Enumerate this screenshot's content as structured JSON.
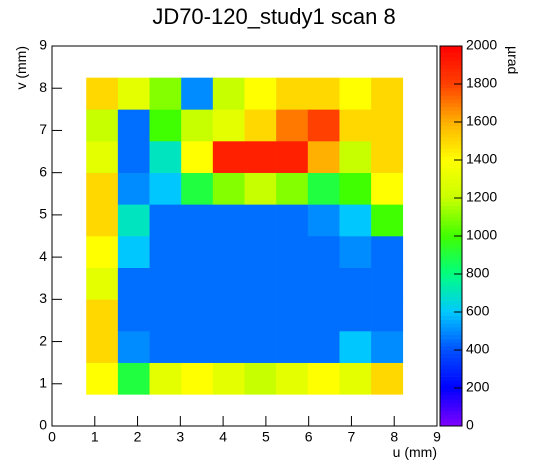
{
  "chart_data": {
    "type": "heatmap",
    "title": "JD70-120_study1 scan 8",
    "x_label": "u (mm)",
    "y_label": "v (mm)",
    "z_label": "µrad",
    "xlim": [
      0,
      9
    ],
    "ylim": [
      0,
      9
    ],
    "xticks": [
      0,
      1,
      2,
      3,
      4,
      5,
      6,
      7,
      8,
      9
    ],
    "yticks": [
      0,
      1,
      2,
      3,
      4,
      5,
      6,
      7,
      8,
      9
    ],
    "zlim": [
      0,
      2000
    ],
    "zticks": [
      0,
      200,
      400,
      600,
      800,
      1000,
      1200,
      1400,
      1600,
      1800,
      2000
    ],
    "colormap": [
      "#8000ff",
      "#0000ff",
      "#0050ff",
      "#00c8ff",
      "#00ff80",
      "#40ff00",
      "#c8ff00",
      "#ffff00",
      "#ffb000",
      "#ff4000",
      "#ff0000"
    ],
    "xedges": [
      0.8,
      1.54,
      2.28,
      3.02,
      3.76,
      4.5,
      5.24,
      5.98,
      6.72,
      7.46,
      8.2
    ],
    "yedges": [
      0.75,
      1.5,
      2.25,
      3,
      3.75,
      4.5,
      5.25,
      6,
      6.75,
      7.5,
      8.25
    ],
    "z": [
      [
        1400,
        900,
        1300,
        1400,
        1300,
        1200,
        1300,
        1400,
        1300,
        1500
      ],
      [
        1500,
        500,
        450,
        450,
        450,
        450,
        450,
        450,
        600,
        500
      ],
      [
        1500,
        450,
        450,
        450,
        450,
        450,
        450,
        450,
        450,
        450
      ],
      [
        1300,
        450,
        450,
        450,
        450,
        450,
        450,
        450,
        450,
        450
      ],
      [
        1400,
        600,
        450,
        450,
        450,
        450,
        450,
        450,
        500,
        450
      ],
      [
        1500,
        700,
        450,
        450,
        450,
        450,
        450,
        500,
        600,
        1000
      ],
      [
        1500,
        500,
        600,
        900,
        1100,
        1200,
        1100,
        900,
        1000,
        1400
      ],
      [
        1300,
        450,
        700,
        1400,
        1900,
        1900,
        1900,
        1600,
        1200,
        1500
      ],
      [
        1200,
        450,
        1000,
        1200,
        1300,
        1500,
        1700,
        1800,
        1500,
        1500
      ],
      [
        1500,
        1300,
        1100,
        500,
        1200,
        1400,
        1500,
        1500,
        1400,
        1500
      ]
    ]
  }
}
